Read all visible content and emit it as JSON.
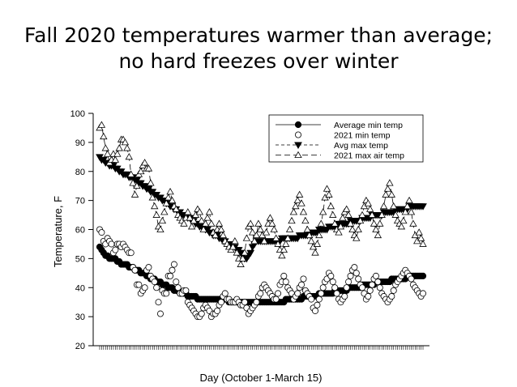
{
  "slide": {
    "title_line1": "Fall 2020 temperatures warmer than average;",
    "title_line2": "no hard freezes over winter"
  },
  "chart_data": {
    "type": "scatter",
    "xlabel": "Day (October 1-March 15)",
    "ylabel": "Temperature, F",
    "ylim": [
      20,
      100
    ],
    "yticks": [
      20,
      30,
      40,
      50,
      60,
      70,
      80,
      90,
      100
    ],
    "xlim": [
      1,
      166
    ],
    "grid": false,
    "legend_position": "top-right",
    "series": [
      {
        "name": "Average min temp",
        "marker": "filled-circle",
        "line": "solid",
        "values": [
          54,
          53,
          52,
          51,
          51,
          50,
          50,
          50,
          50,
          49,
          49,
          48,
          48,
          48,
          48,
          47,
          47,
          47,
          46,
          46,
          46,
          45,
          45,
          45,
          44,
          44,
          43,
          43,
          43,
          42,
          42,
          42,
          41,
          41,
          41,
          40,
          40,
          40,
          39,
          39,
          39,
          38,
          38,
          38,
          38,
          37,
          37,
          37,
          37,
          37,
          36,
          36,
          36,
          36,
          36,
          36,
          36,
          36,
          36,
          36,
          36,
          36,
          36,
          36,
          36,
          36,
          35,
          35,
          35,
          35,
          35,
          35,
          35,
          35,
          35,
          35,
          35,
          35,
          35,
          35,
          35,
          35,
          35,
          35,
          35,
          35,
          35,
          35,
          35,
          35,
          35,
          35,
          35,
          35,
          35,
          36,
          36,
          36,
          36,
          36,
          36,
          36,
          36,
          36,
          37,
          37,
          37,
          37,
          37,
          37,
          37,
          37,
          38,
          38,
          38,
          38,
          38,
          38,
          38,
          38,
          39,
          39,
          39,
          39,
          39,
          39,
          39,
          40,
          40,
          40,
          40,
          40,
          40,
          40,
          41,
          41,
          41,
          41,
          41,
          41,
          41,
          42,
          42,
          42,
          42,
          42,
          42,
          42,
          42,
          43,
          43,
          43,
          43,
          43,
          43,
          43,
          43,
          44,
          44,
          44,
          44,
          44,
          44,
          44,
          44,
          44
        ]
      },
      {
        "name": "2021 min temp",
        "marker": "open-circle",
        "line": "none",
        "values": [
          60,
          59,
          56,
          55,
          57,
          56,
          55,
          52,
          53,
          55,
          55,
          54,
          55,
          54,
          53,
          52,
          52,
          47,
          46,
          41,
          41,
          38,
          39,
          40,
          46,
          47,
          44,
          43,
          42,
          40,
          35,
          31,
          39,
          38,
          38,
          44,
          44,
          46,
          48,
          42,
          40,
          38,
          38,
          39,
          39,
          35,
          34,
          33,
          32,
          31,
          30,
          30,
          31,
          33,
          34,
          33,
          32,
          30,
          31,
          31,
          32,
          34,
          35,
          37,
          38,
          36,
          36,
          35,
          35,
          35,
          36,
          35,
          34,
          34,
          35,
          33,
          31,
          32,
          33,
          34,
          35,
          37,
          38,
          40,
          41,
          40,
          39,
          38,
          37,
          36,
          36,
          38,
          41,
          42,
          44,
          42,
          40,
          39,
          38,
          36,
          37,
          38,
          40,
          41,
          43,
          39,
          38,
          37,
          36,
          33,
          32,
          34,
          36,
          38,
          40,
          42,
          43,
          45,
          44,
          42,
          40,
          38,
          36,
          35,
          36,
          37,
          40,
          42,
          44,
          46,
          47,
          45,
          43,
          41,
          40,
          38,
          36,
          37,
          39,
          41,
          43,
          44,
          42,
          40,
          38,
          37,
          36,
          35,
          36,
          37,
          39,
          41,
          42,
          43,
          44,
          45,
          46,
          45,
          44,
          43,
          41,
          40,
          39,
          38,
          37,
          38
        ]
      },
      {
        "name": "Avg max temp",
        "marker": "filled-triangle-down",
        "line": "dashed",
        "values": [
          85,
          84,
          84,
          83,
          83,
          82,
          82,
          82,
          81,
          81,
          80,
          80,
          79,
          79,
          79,
          78,
          78,
          78,
          77,
          77,
          76,
          76,
          75,
          75,
          74,
          74,
          73,
          73,
          72,
          72,
          71,
          71,
          70,
          70,
          69,
          69,
          68,
          68,
          67,
          67,
          66,
          66,
          65,
          65,
          65,
          64,
          64,
          63,
          63,
          62,
          62,
          61,
          61,
          61,
          60,
          60,
          59,
          59,
          58,
          58,
          58,
          57,
          57,
          56,
          56,
          55,
          55,
          55,
          54,
          54,
          53,
          53,
          52,
          51,
          50,
          50,
          51,
          52,
          54,
          55,
          56,
          56,
          56,
          56,
          56,
          56,
          56,
          56,
          56,
          56,
          56,
          56,
          56,
          57,
          57,
          57,
          57,
          57,
          57,
          57,
          57,
          57,
          58,
          58,
          58,
          58,
          58,
          59,
          59,
          59,
          59,
          59,
          60,
          60,
          60,
          60,
          60,
          61,
          61,
          61,
          61,
          61,
          62,
          62,
          62,
          62,
          62,
          62,
          63,
          63,
          63,
          63,
          63,
          63,
          64,
          64,
          64,
          64,
          64,
          65,
          65,
          65,
          65,
          65,
          65,
          66,
          66,
          66,
          66,
          66,
          66,
          67,
          67,
          67,
          67,
          67,
          67,
          67,
          68,
          68,
          68,
          68,
          68,
          68,
          68,
          68
        ]
      },
      {
        "name": "2021 max air temp",
        "marker": "open-triangle-up",
        "line": "long-dash",
        "values": [
          95,
          96,
          92,
          88,
          86,
          83,
          84,
          86,
          84,
          86,
          88,
          91,
          91,
          90,
          88,
          85,
          79,
          76,
          72,
          75,
          79,
          80,
          82,
          83,
          81,
          81,
          76,
          71,
          68,
          65,
          61,
          60,
          63,
          66,
          69,
          71,
          73,
          70,
          68,
          67,
          65,
          64,
          63,
          62,
          64,
          66,
          64,
          61,
          63,
          65,
          67,
          66,
          63,
          60,
          62,
          64,
          66,
          62,
          59,
          58,
          60,
          62,
          60,
          58,
          56,
          55,
          54,
          53,
          54,
          56,
          52,
          50,
          48,
          50,
          52,
          57,
          61,
          62,
          59,
          56,
          58,
          62,
          60,
          58,
          56,
          59,
          62,
          64,
          62,
          60,
          57,
          55,
          53,
          51,
          53,
          55,
          57,
          60,
          63,
          66,
          68,
          70,
          72,
          69,
          66,
          63,
          60,
          58,
          56,
          54,
          52,
          55,
          58,
          62,
          66,
          71,
          74,
          72,
          68,
          65,
          62,
          60,
          59,
          61,
          64,
          66,
          67,
          65,
          62,
          60,
          58,
          57,
          60,
          63,
          65,
          68,
          70,
          69,
          67,
          65,
          62,
          60,
          58,
          62,
          65,
          68,
          72,
          74,
          76,
          72,
          68,
          65,
          63,
          62,
          61,
          63,
          66,
          68,
          70,
          66,
          62,
          58,
          56,
          59,
          57,
          55
        ]
      }
    ]
  }
}
